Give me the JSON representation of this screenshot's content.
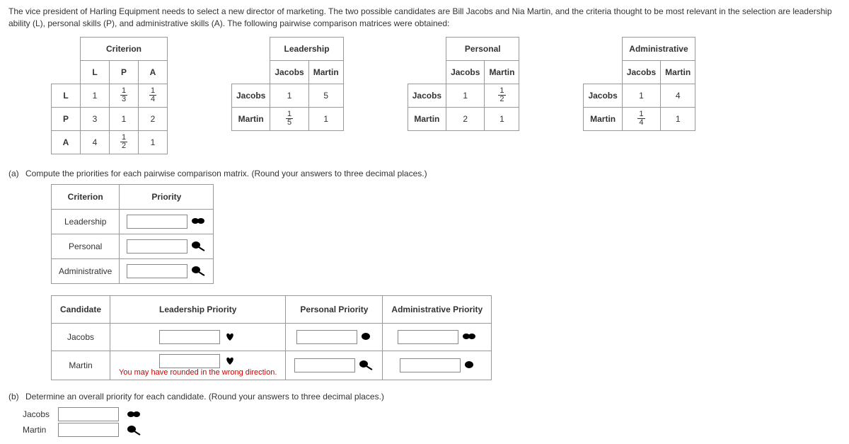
{
  "intro": "The vice president of Harling Equipment needs to select a new director of marketing. The two possible candidates are Bill Jacobs and Nia Martin, and the criteria thought to be most relevant in the selection are leadership ability (L), personal skills (P), and administrative skills (A). The following pairwise comparison matrices were obtained:",
  "criterionMatrix": {
    "title": "Criterion",
    "headers": [
      "L",
      "P",
      "A"
    ],
    "rows": [
      {
        "label": "L",
        "cells": [
          "1",
          {
            "frac": [
              1,
              3
            ]
          },
          {
            "frac": [
              1,
              4
            ]
          }
        ]
      },
      {
        "label": "P",
        "cells": [
          "3",
          "1",
          "2"
        ]
      },
      {
        "label": "A",
        "cells": [
          "4",
          {
            "frac": [
              1,
              2
            ]
          },
          "1"
        ]
      }
    ]
  },
  "pairMatrices": [
    {
      "title": "Leadership",
      "cols": [
        "Jacobs",
        "Martin"
      ],
      "rows": [
        {
          "label": "Jacobs",
          "cells": [
            "1",
            "5"
          ]
        },
        {
          "label": "Martin",
          "cells": [
            {
              "frac": [
                1,
                5
              ]
            },
            "1"
          ]
        }
      ]
    },
    {
      "title": "Personal",
      "cols": [
        "Jacobs",
        "Martin"
      ],
      "rows": [
        {
          "label": "Jacobs",
          "cells": [
            "1",
            {
              "frac": [
                1,
                2
              ]
            }
          ]
        },
        {
          "label": "Martin",
          "cells": [
            "2",
            "1"
          ]
        }
      ]
    },
    {
      "title": "Administrative",
      "cols": [
        "Jacobs",
        "Martin"
      ],
      "rows": [
        {
          "label": "Jacobs",
          "cells": [
            "1",
            "4"
          ]
        },
        {
          "label": "Martin",
          "cells": [
            {
              "frac": [
                1,
                4
              ]
            },
            "1"
          ]
        }
      ]
    }
  ],
  "partA": {
    "label": "(a)",
    "text": "Compute the priorities for each pairwise comparison matrix. (Round your answers to three decimal places.)",
    "priorityTable": {
      "headers": [
        "Criterion",
        "Priority"
      ],
      "rows": [
        "Leadership",
        "Personal",
        "Administrative"
      ]
    },
    "candidateTable": {
      "headers": [
        "Candidate",
        "Leadership Priority",
        "Personal Priority",
        "Administrative Priority"
      ],
      "rows": [
        "Jacobs",
        "Martin"
      ],
      "hint": "You may have rounded in the wrong direction."
    }
  },
  "partB": {
    "label": "(b)",
    "text": "Determine an overall priority for each candidate. (Round your answers to three decimal places.)",
    "rows": [
      "Jacobs",
      "Martin"
    ]
  },
  "colors": {
    "hint": "#cc0000",
    "blob": "#000000"
  }
}
